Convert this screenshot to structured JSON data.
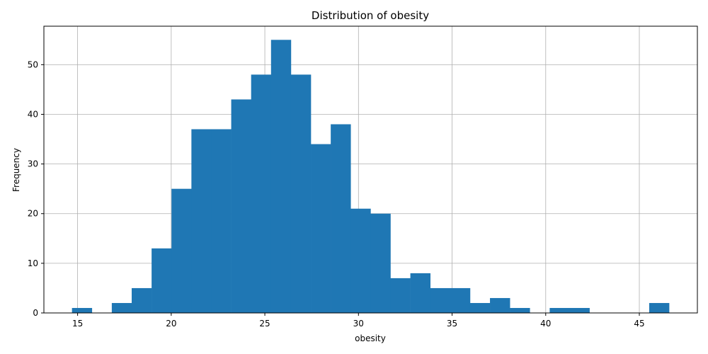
{
  "chart_data": {
    "type": "bar",
    "title": "Distribution of obesity",
    "xlabel": "obesity",
    "ylabel": "Frequency",
    "xlim": [
      13.2,
      48.1
    ],
    "ylim": [
      0,
      57.75
    ],
    "xticks": [
      15,
      20,
      25,
      30,
      35,
      40,
      45
    ],
    "yticks": [
      0,
      10,
      20,
      30,
      40,
      50
    ],
    "grid": true,
    "bar_color": "#1f77b4",
    "bin_width": 1.063,
    "bins_start": [
      14.7,
      15.763,
      16.826,
      17.889,
      18.952,
      20.015,
      21.078,
      22.141,
      23.204,
      24.267,
      25.33,
      26.393,
      27.456,
      28.519,
      29.582,
      30.645,
      31.708,
      32.771,
      33.834,
      34.897,
      35.96,
      37.023,
      38.086,
      39.149,
      40.212,
      41.275,
      42.338,
      43.401,
      44.464,
      45.527
    ],
    "values": [
      1,
      0,
      2,
      5,
      13,
      25,
      37,
      37,
      43,
      48,
      55,
      48,
      34,
      38,
      21,
      20,
      7,
      8,
      5,
      5,
      2,
      3,
      1,
      0,
      1,
      1,
      0,
      0,
      0,
      2
    ]
  }
}
